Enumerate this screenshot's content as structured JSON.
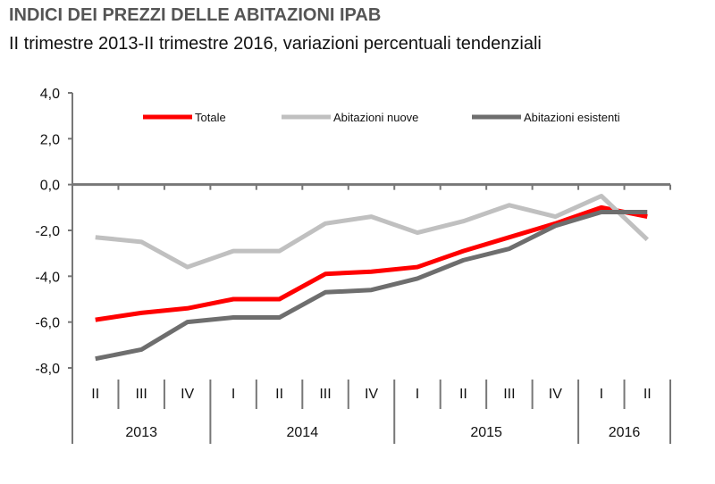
{
  "chart_data": {
    "type": "line",
    "title": "INDICI DEI PREZZI DELLE ABITAZIONI IPAB",
    "subtitle": "II trimestre 2013-II trimestre 2016, variazioni percentuali tendenziali",
    "quarters": [
      "II",
      "III",
      "IV",
      "I",
      "II",
      "III",
      "IV",
      "I",
      "II",
      "III",
      "IV",
      "I",
      "II"
    ],
    "years": [
      {
        "label": "2013",
        "span": 3
      },
      {
        "label": "2014",
        "span": 4
      },
      {
        "label": "2015",
        "span": 4
      },
      {
        "label": "2016",
        "span": 2
      }
    ],
    "yticks": [
      "4,0",
      "2,0",
      "0,0",
      "-2,0",
      "-4,0",
      "-6,0",
      "-8,0"
    ],
    "ylim": [
      -8,
      4
    ],
    "grid": false,
    "legend_position": "top",
    "series": [
      {
        "name": "Totale",
        "color": "#ff0000",
        "values": [
          -5.9,
          -5.6,
          -5.4,
          -5.0,
          -5.0,
          -3.9,
          -3.8,
          -3.6,
          -2.9,
          -2.3,
          -1.7,
          -1.0,
          -1.4
        ]
      },
      {
        "name": "Abitazioni nuove",
        "color": "#c0c0c0",
        "values": [
          -2.3,
          -2.5,
          -3.6,
          -2.9,
          -2.9,
          -1.7,
          -1.4,
          -2.1,
          -1.6,
          -0.9,
          -1.4,
          -0.5,
          -2.4
        ]
      },
      {
        "name": "Abitazioni esistenti",
        "color": "#6e6e6e",
        "values": [
          -7.6,
          -7.2,
          -6.0,
          -5.8,
          -5.8,
          -4.7,
          -4.6,
          -4.1,
          -3.3,
          -2.8,
          -1.8,
          -1.2,
          -1.2
        ]
      }
    ]
  }
}
